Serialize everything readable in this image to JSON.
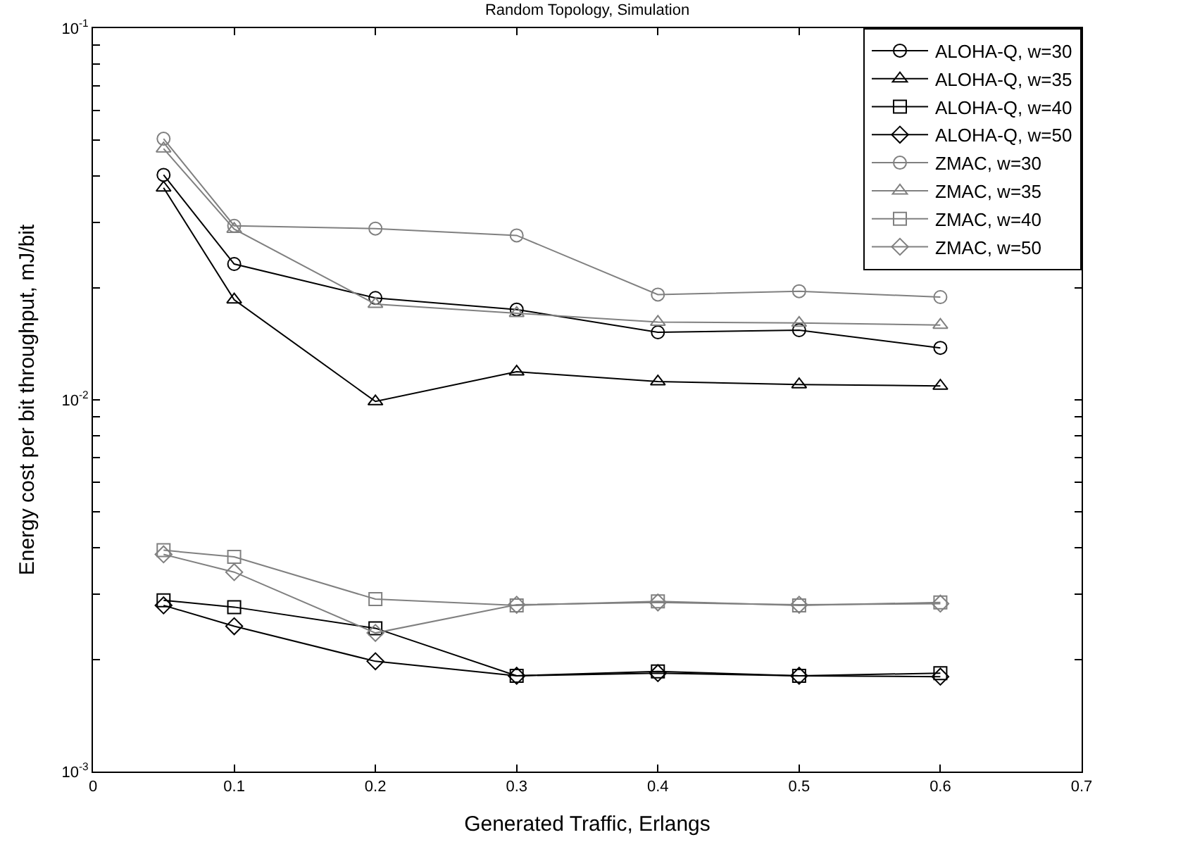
{
  "chart_data": {
    "type": "line",
    "title": "Random Topology, Simulation",
    "xlabel": "Generated Traffic, Erlangs",
    "ylabel": "Energy cost per bit throughput, mJ/bit",
    "x": [
      0.05,
      0.1,
      0.2,
      0.3,
      0.4,
      0.5,
      0.6
    ],
    "series": [
      {
        "name": "ALOHA-Q, w=30",
        "color": "#000000",
        "marker": "circle",
        "values": [
          0.0403,
          0.0232,
          0.0188,
          0.0175,
          0.0152,
          0.0154,
          0.0138
        ]
      },
      {
        "name": "ALOHA-Q, w=35",
        "color": "#000000",
        "marker": "triangle",
        "values": [
          0.0372,
          0.0186,
          0.0099,
          0.0119,
          0.0112,
          0.011,
          0.0109
        ]
      },
      {
        "name": "ALOHA-Q, w=40",
        "color": "#000000",
        "marker": "square",
        "values": [
          0.00289,
          0.00277,
          0.00243,
          0.00181,
          0.00186,
          0.00181,
          0.00184
        ]
      },
      {
        "name": "ALOHA-Q, w=50",
        "color": "#000000",
        "marker": "diamond",
        "values": [
          0.0028,
          0.00246,
          0.00198,
          0.00181,
          0.00184,
          0.00181,
          0.0018
        ]
      },
      {
        "name": "ZMAC, w=30",
        "color": "#808080",
        "marker": "circle",
        "values": [
          0.0504,
          0.0294,
          0.0289,
          0.0277,
          0.0192,
          0.0196,
          0.0189
        ]
      },
      {
        "name": "ZMAC, w=35",
        "color": "#808080",
        "marker": "triangle",
        "values": [
          0.0474,
          0.0288,
          0.0181,
          0.0171,
          0.0162,
          0.0161,
          0.0159
        ]
      },
      {
        "name": "ZMAC, w=40",
        "color": "#808080",
        "marker": "square",
        "values": [
          0.00394,
          0.00378,
          0.00291,
          0.0028,
          0.00287,
          0.0028,
          0.00285
        ]
      },
      {
        "name": "ZMAC, w=50",
        "color": "#808080",
        "marker": "diamond",
        "values": [
          0.00384,
          0.00344,
          0.00236,
          0.00281,
          0.00285,
          0.00281,
          0.00283
        ]
      }
    ],
    "xlim": [
      0,
      0.7
    ],
    "xticks": [
      0,
      0.1,
      0.2,
      0.3,
      0.4,
      0.5,
      0.6,
      0.7
    ],
    "log": "y",
    "ylim": [
      0.001,
      0.1
    ],
    "yticks": [
      {
        "value": 0.001,
        "label": "10$^{-3}$"
      },
      {
        "value": 0.002,
        "label": null
      },
      {
        "value": 0.003,
        "label": null
      },
      {
        "value": 0.004,
        "label": null
      },
      {
        "value": 0.005,
        "label": null
      },
      {
        "value": 0.006,
        "label": null
      },
      {
        "value": 0.007,
        "label": null
      },
      {
        "value": 0.008,
        "label": null
      },
      {
        "value": 0.009,
        "label": null
      },
      {
        "value": 0.01,
        "label": "10$^{-2}$"
      },
      {
        "value": 0.02,
        "label": null
      },
      {
        "value": 0.03,
        "label": null
      },
      {
        "value": 0.04,
        "label": null
      },
      {
        "value": 0.05,
        "label": null
      },
      {
        "value": 0.06,
        "label": null
      },
      {
        "value": 0.07,
        "label": null
      },
      {
        "value": 0.08,
        "label": null
      },
      {
        "value": 0.09,
        "label": null
      },
      {
        "value": 0.1,
        "label": "10$^{-1}$"
      }
    ],
    "legend": "top right",
    "line_style": "solid"
  }
}
